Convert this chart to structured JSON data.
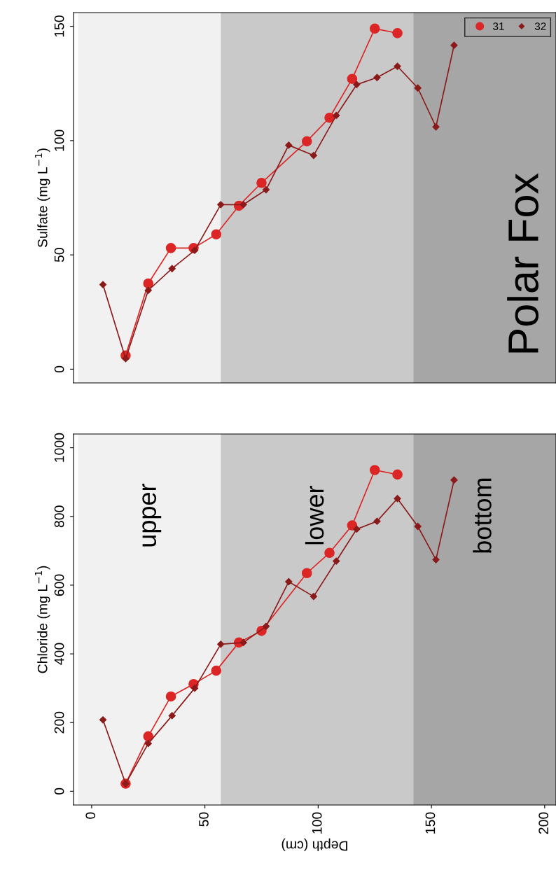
{
  "chart_data": [
    {
      "type": "line",
      "ylabel": "Sulfate (mg L$^{−1}$)",
      "xlim": [
        -8,
        205
      ],
      "ylim": [
        -6,
        156
      ],
      "yticks": [
        0,
        50,
        100,
        150
      ],
      "tick_labels": "y",
      "grid": false,
      "legend": "top right",
      "annotations": [
        "Polar Fox"
      ],
      "bands": [
        {
          "axis": "x",
          "from": -6,
          "to": 57,
          "color": "#f1f1f1"
        },
        {
          "axis": "x",
          "from": 57,
          "to": 142,
          "color": "#c9c9c9"
        },
        {
          "axis": "x",
          "from": 142,
          "to": 205,
          "color": "#a6a6a6"
        }
      ],
      "series": [
        {
          "name": "31",
          "color": "#dc2626",
          "marker": "circle",
          "x": [
            15,
            25,
            35,
            45,
            55,
            65,
            75,
            95,
            105,
            115,
            125,
            135
          ],
          "values": [
            6,
            37.5,
            53,
            53,
            59,
            71.5,
            81.5,
            99.7,
            110,
            127,
            149,
            147
          ]
        },
        {
          "name": "32",
          "color": "#8b1a1a",
          "marker": "diamond",
          "x": [
            5,
            15,
            25,
            35.5,
            45.5,
            57,
            67,
            77,
            87,
            98,
            108,
            117,
            126,
            135,
            144,
            152,
            160
          ],
          "values": [
            37,
            4.6,
            34.5,
            44,
            52,
            72,
            72,
            78.5,
            98,
            93.5,
            111,
            124.5,
            127.6,
            132.5,
            123,
            106,
            141.7
          ]
        }
      ]
    },
    {
      "type": "line",
      "xlabel": "Depth (cm)",
      "ylabel": "Chloride (mg L$^{−1}$)",
      "xlim": [
        -8,
        205
      ],
      "ylim": [
        -40,
        1040
      ],
      "xticks": [
        0,
        50,
        100,
        150,
        200
      ],
      "yticks": [
        0,
        200,
        400,
        600,
        800,
        1000
      ],
      "grid": false,
      "legend": false,
      "bands": [
        {
          "axis": "x",
          "from": -6,
          "to": 57,
          "color": "#f1f1f1",
          "label": "upper"
        },
        {
          "axis": "x",
          "from": 57,
          "to": 142,
          "color": "#c9c9c9",
          "label": "lower"
        },
        {
          "axis": "x",
          "from": 142,
          "to": 205,
          "color": "#a6a6a6",
          "label": "bottom"
        }
      ],
      "series": [
        {
          "name": "31",
          "color": "#dc2626",
          "marker": "circle",
          "x": [
            15,
            25,
            35,
            45,
            55,
            65,
            75,
            95,
            105,
            115,
            125,
            135
          ],
          "values": [
            22,
            160,
            276,
            312,
            351,
            433,
            467,
            635,
            694,
            774,
            935,
            922
          ]
        },
        {
          "name": "32",
          "color": "#8b1a1a",
          "marker": "diamond",
          "x": [
            5,
            15,
            25,
            35.5,
            45.5,
            57,
            67,
            77,
            87,
            98,
            108,
            117,
            126,
            135,
            144,
            152,
            160
          ],
          "values": [
            208,
            22,
            139,
            220,
            300,
            428,
            433,
            480,
            610,
            567,
            670,
            763,
            786,
            852,
            771,
            674,
            906
          ]
        }
      ]
    }
  ]
}
